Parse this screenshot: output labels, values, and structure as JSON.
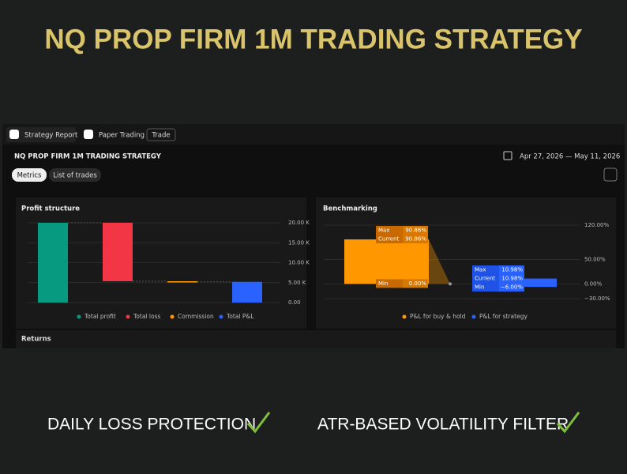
{
  "header": {
    "title": "NQ PROP FIRM 1M TRADING STRATEGY"
  },
  "tabs": [
    "Strategy Report",
    "Paper Trading",
    "Trade"
  ],
  "strategy_name": "NQ PROP FIRM 1M TRADING STRATEGY",
  "date_range": "Apr 27, 2026 — May 11, 2026",
  "view_tabs": [
    "Metrics",
    "List of trades"
  ],
  "chart_data": [
    {
      "type": "waterfall",
      "title": "Profit structure",
      "categories": [
        "Total profit",
        "Total loss",
        "Commission",
        "Total P&L"
      ],
      "values": [
        20000,
        -14650,
        -150,
        5200
      ],
      "colors": [
        "#089981",
        "#f23645",
        "#ff9800",
        "#2962ff"
      ],
      "totals": [
        true,
        false,
        false,
        true
      ],
      "ylim": [
        0,
        20000
      ],
      "yticks": [
        {
          "value": 0,
          "label": "0.00"
        },
        {
          "value": 5000,
          "label": "5.00 K"
        },
        {
          "value": 10000,
          "label": "10.00 K"
        },
        {
          "value": 15000,
          "label": "15.00 K"
        },
        {
          "value": 20000,
          "label": "20.00 K"
        }
      ]
    },
    {
      "type": "range",
      "title": "Benchmarking",
      "stat_labels": [
        "Max",
        "Current",
        "Min"
      ],
      "series": [
        {
          "name": "P&L for buy & hold",
          "color": "#ff9800",
          "values": [
            90.86,
            90.86,
            0
          ],
          "value_labels": [
            "90.86%",
            "90.86%",
            "0.00%"
          ]
        },
        {
          "name": "P&L for strategy",
          "color": "#2962ff",
          "values": [
            10.98,
            10.98,
            -6.0
          ],
          "value_labels": [
            "10.98%",
            "10.98%",
            "−6.00%"
          ]
        }
      ],
      "ylim": [
        -30,
        120
      ],
      "yticks": [
        {
          "value": -30,
          "label": "−30.00%"
        },
        {
          "value": 0,
          "label": "0.00%"
        },
        {
          "value": 50,
          "label": "50.00%"
        },
        {
          "value": 120,
          "label": "120.00%"
        }
      ]
    }
  ],
  "returns_label": "Returns",
  "features": [
    "DAILY LOSS PROTECTION",
    "ATR-BASED VOLATILITY FILTER"
  ]
}
